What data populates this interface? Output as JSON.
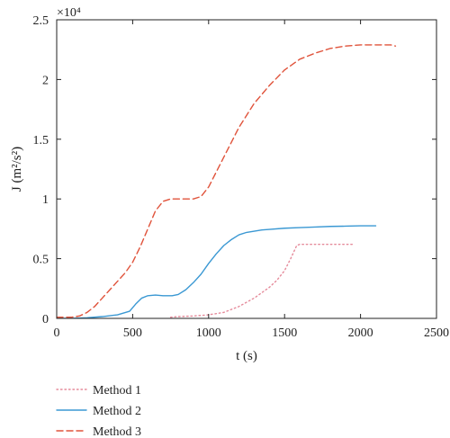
{
  "chart_data": {
    "type": "line",
    "xlabel": "t (s)",
    "ylabel": "J (m²/s²)",
    "y_multiplier": "×10⁴",
    "xlim": [
      0,
      2500
    ],
    "ylim": [
      0,
      2.5
    ],
    "xticks": [
      0,
      500,
      1000,
      1500,
      2000,
      2500
    ],
    "yticks": [
      0,
      0.5,
      1,
      1.5,
      2,
      2.5
    ],
    "xtick_labels": [
      "0",
      "500",
      "1000",
      "1500",
      "2000",
      "2500"
    ],
    "ytick_labels": [
      "0",
      "0.5",
      "1",
      "1.5",
      "2",
      "2.5"
    ],
    "grid": false,
    "legend_position": "bottom-left, below plot",
    "series": [
      {
        "name": "Method 1",
        "color": "#e58a9a",
        "style": "dotted",
        "x": [
          750,
          800,
          900,
          1000,
          1100,
          1200,
          1300,
          1400,
          1450,
          1500,
          1540,
          1580,
          1600,
          1700,
          1800,
          1900,
          1950
        ],
        "y": [
          0.01,
          0.015,
          0.02,
          0.03,
          0.05,
          0.1,
          0.17,
          0.26,
          0.32,
          0.4,
          0.5,
          0.61,
          0.62,
          0.62,
          0.62,
          0.62,
          0.62
        ]
      },
      {
        "name": "Method 2",
        "color": "#3a98d3",
        "style": "solid",
        "x": [
          0,
          100,
          200,
          300,
          400,
          480,
          520,
          560,
          600,
          650,
          700,
          760,
          800,
          850,
          900,
          950,
          1000,
          1050,
          1100,
          1150,
          1200,
          1250,
          1300,
          1350,
          1400,
          1500,
          1600,
          1700,
          1800,
          1900,
          2000,
          2100
        ],
        "y": [
          0.0,
          0.0,
          0.005,
          0.015,
          0.03,
          0.06,
          0.12,
          0.17,
          0.19,
          0.195,
          0.19,
          0.19,
          0.2,
          0.24,
          0.3,
          0.37,
          0.46,
          0.54,
          0.61,
          0.66,
          0.7,
          0.72,
          0.73,
          0.74,
          0.745,
          0.755,
          0.76,
          0.765,
          0.77,
          0.772,
          0.775,
          0.775
        ]
      },
      {
        "name": "Method 3",
        "color": "#e0533b",
        "style": "dashed",
        "x": [
          0,
          100,
          150,
          200,
          250,
          300,
          350,
          400,
          450,
          500,
          550,
          600,
          650,
          700,
          750,
          800,
          850,
          900,
          950,
          1000,
          1100,
          1200,
          1300,
          1400,
          1500,
          1600,
          1700,
          1800,
          1900,
          2000,
          2100,
          2200,
          2230
        ],
        "y": [
          0.01,
          0.01,
          0.02,
          0.05,
          0.1,
          0.17,
          0.24,
          0.31,
          0.38,
          0.47,
          0.6,
          0.75,
          0.9,
          0.98,
          1.0,
          1.0,
          1.0,
          1.0,
          1.02,
          1.1,
          1.35,
          1.6,
          1.8,
          1.95,
          2.08,
          2.17,
          2.22,
          2.26,
          2.28,
          2.29,
          2.29,
          2.29,
          2.28
        ]
      }
    ]
  }
}
